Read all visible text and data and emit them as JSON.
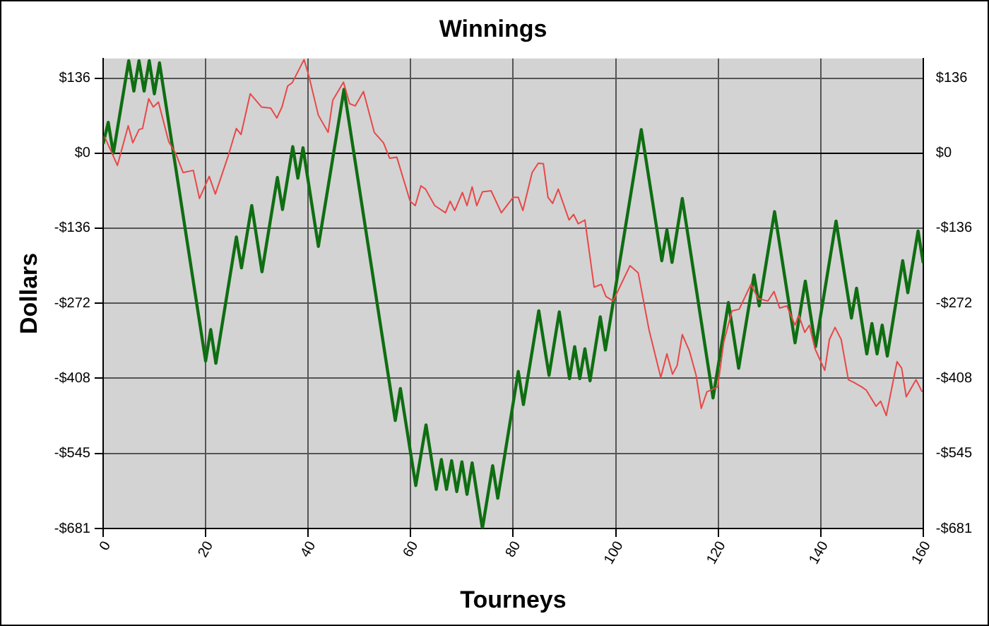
{
  "chart_data": {
    "type": "line",
    "title": "Winnings",
    "xlabel": "Tourneys",
    "ylabel": "Dollars",
    "xlim": [
      0,
      160
    ],
    "xticks": [
      0,
      20,
      40,
      60,
      80,
      100,
      120,
      140,
      160
    ],
    "ylim": [
      -681,
      172
    ],
    "yticks": [
      {
        "value": -681,
        "label": "-$681"
      },
      {
        "value": -545,
        "label": "-$545"
      },
      {
        "value": -408,
        "label": "-$408"
      },
      {
        "value": -272,
        "label": "-$272"
      },
      {
        "value": -136,
        "label": "-$136"
      },
      {
        "value": 0,
        "label": "$0"
      },
      {
        "value": 136,
        "label": "$136"
      }
    ],
    "y2lim": [
      -681,
      172
    ],
    "y2ticks": [
      {
        "value": -681,
        "label": "-$681"
      },
      {
        "value": -545,
        "label": "-$545"
      },
      {
        "value": -408,
        "label": "-$408"
      },
      {
        "value": -272,
        "label": "-$272"
      },
      {
        "value": -136,
        "label": "-$136"
      },
      {
        "value": 0,
        "label": "$0"
      },
      {
        "value": 136,
        "label": "$136"
      }
    ],
    "grid": true,
    "legend": false,
    "marker": "none",
    "line_style": "solid",
    "ref_lines": [
      {
        "axis": "y",
        "value": 0,
        "color": "#000000"
      }
    ],
    "series": [
      {
        "color": "#e84848",
        "x": [
          0.3,
          2.8,
          4.9,
          5.8,
          7.0,
          7.7,
          8.9,
          9.8,
          10.8,
          12.8,
          14.2,
          15.6,
          17.6,
          18.8,
          20.7,
          21.9,
          24.4,
          26.0,
          26.9,
          28.7,
          30.9,
          32.7,
          33.9,
          34.9,
          36.0,
          36.9,
          39.2,
          40.1,
          42.0,
          43.9,
          44.8,
          46.9,
          48.1,
          49.2,
          50.8,
          52.9,
          54.7,
          55.9,
          57.3,
          59.9,
          60.9,
          62.0,
          62.9,
          64.7,
          66.8,
          67.7,
          68.6,
          70.1,
          71.0,
          72.0,
          72.9,
          74.0,
          75.7,
          77.7,
          80.0,
          81.0,
          81.9,
          83.7,
          84.9,
          85.9,
          86.8,
          87.7,
          88.8,
          90.9,
          91.8,
          92.7,
          94.0,
          95.8,
          97.2,
          98.1,
          99.5,
          102.8,
          104.4,
          106.5,
          108.8,
          110.0,
          111.1,
          112.0,
          113.0,
          114.4,
          115.7,
          116.7,
          117.8,
          119.9,
          121.1,
          122.7,
          124.1,
          126.4,
          127.8,
          129.7,
          130.9,
          132.0,
          133.4,
          135.0,
          135.7,
          136.9,
          137.8,
          138.9,
          140.8,
          141.7,
          142.8,
          144.0,
          145.4,
          146.5,
          148.0,
          148.9,
          150.8,
          151.7,
          152.8,
          154.9,
          155.8,
          156.7,
          158.6,
          159.8
        ],
        "values": [
          30,
          -22,
          50,
          19,
          43,
          45,
          99,
          84,
          93,
          21,
          -1,
          -35,
          -31,
          -82,
          -42,
          -74,
          -5,
          45,
          34,
          108,
          84,
          82,
          64,
          84,
          122,
          128,
          170,
          142,
          69,
          38,
          96,
          129,
          90,
          86,
          112,
          38,
          19,
          -9,
          -7,
          -87,
          -95,
          -59,
          -65,
          -95,
          -108,
          -87,
          -104,
          -71,
          -95,
          -61,
          -95,
          -70,
          -68,
          -108,
          -80,
          -80,
          -104,
          -35,
          -18,
          -19,
          -80,
          -91,
          -65,
          -121,
          -111,
          -128,
          -121,
          -243,
          -238,
          -260,
          -268,
          -204,
          -217,
          -320,
          -407,
          -364,
          -401,
          -385,
          -329,
          -359,
          -403,
          -463,
          -433,
          -424,
          -342,
          -286,
          -283,
          -238,
          -264,
          -268,
          -251,
          -281,
          -277,
          -312,
          -294,
          -325,
          -312,
          -355,
          -394,
          -338,
          -316,
          -338,
          -411,
          -416,
          -424,
          -430,
          -459,
          -450,
          -476,
          -378,
          -390,
          -442,
          -411,
          -433
        ]
      },
      {
        "color": "#0f6e12",
        "x": [
          0,
          1,
          2,
          5,
          6,
          7,
          8,
          9,
          10,
          11,
          20,
          21,
          22,
          26,
          27,
          29,
          31,
          34,
          35,
          37,
          38,
          39,
          42,
          47,
          57,
          58,
          61,
          63,
          65,
          66,
          67,
          68,
          69,
          70,
          71,
          72,
          74,
          76,
          77,
          81,
          82,
          85,
          87,
          89,
          91,
          92,
          93,
          94,
          95,
          97,
          98,
          105,
          109,
          110,
          111,
          113,
          119,
          122,
          124,
          127,
          128,
          131,
          135,
          137,
          139,
          143,
          146,
          147,
          149,
          150,
          151,
          152,
          153,
          156,
          157,
          159,
          160
        ],
        "values": [
          17,
          56,
          0,
          168,
          113,
          168,
          113,
          168,
          108,
          164,
          -377,
          -320,
          -381,
          -152,
          -208,
          -95,
          -215,
          -44,
          -102,
          12,
          -45,
          10,
          -169,
          116,
          -485,
          -427,
          -603,
          -493,
          -610,
          -556,
          -610,
          -558,
          -614,
          -560,
          -619,
          -562,
          -681,
          -567,
          -626,
          -396,
          -456,
          -286,
          -403,
          -288,
          -409,
          -351,
          -409,
          -355,
          -413,
          -297,
          -357,
          43,
          -195,
          -139,
          -198,
          -82,
          -444,
          -271,
          -390,
          -221,
          -277,
          -106,
          -344,
          -232,
          -351,
          -123,
          -299,
          -245,
          -364,
          -309,
          -364,
          -312,
          -368,
          -195,
          -253,
          -141,
          -199
        ]
      }
    ]
  }
}
